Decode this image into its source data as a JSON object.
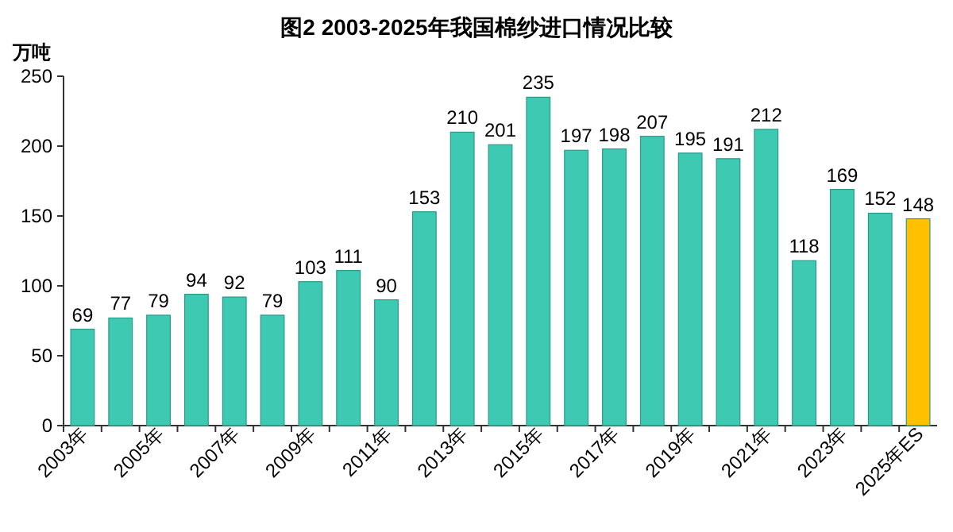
{
  "chart_data": {
    "type": "bar",
    "title": "图2  2003-2025年我国棉纱进口情况比较",
    "ylabel": "万吨",
    "categories": [
      "2003年",
      null,
      "2005年",
      null,
      "2007年",
      null,
      "2009年",
      null,
      "2011年",
      null,
      "2013年",
      null,
      "2015年",
      null,
      "2017年",
      null,
      "2019年",
      null,
      "2021年",
      null,
      "2023年",
      null,
      "2025年ES"
    ],
    "values": [
      69,
      77,
      79,
      94,
      92,
      79,
      103,
      111,
      90,
      153,
      210,
      201,
      235,
      197,
      198,
      207,
      195,
      191,
      212,
      118,
      169,
      152,
      148
    ],
    "colors": [
      "#3ec9b3",
      "#3ec9b3",
      "#3ec9b3",
      "#3ec9b3",
      "#3ec9b3",
      "#3ec9b3",
      "#3ec9b3",
      "#3ec9b3",
      "#3ec9b3",
      "#3ec9b3",
      "#3ec9b3",
      "#3ec9b3",
      "#3ec9b3",
      "#3ec9b3",
      "#3ec9b3",
      "#3ec9b3",
      "#3ec9b3",
      "#3ec9b3",
      "#3ec9b3",
      "#3ec9b3",
      "#3ec9b3",
      "#3ec9b3",
      "#ffc000"
    ],
    "ylim": [
      0,
      250
    ],
    "yticks": [
      0,
      50,
      100,
      150,
      200,
      250
    ],
    "grid": false,
    "data_labels": true
  }
}
